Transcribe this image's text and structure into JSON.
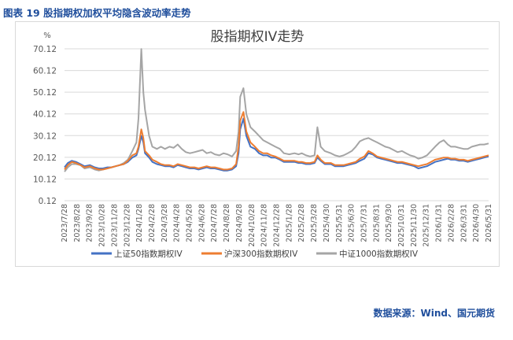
{
  "figure_caption": "图表 19  股指期权加权平均隐含波动率走势",
  "source_note": "数据来源：Wind、国元期货",
  "chart_data": {
    "type": "line",
    "title": "股指期权IV走势",
    "ylabel": "%",
    "ylim": [
      0.12,
      70.12
    ],
    "yticks": [
      "0.12",
      "10.12",
      "20.12",
      "30.12",
      "40.12",
      "50.12",
      "60.12",
      "70.12"
    ],
    "xlim": [
      "2023-07-28",
      "2026-05-31"
    ],
    "x_tick_labels": [
      "2023/7/28",
      "2023/8/28",
      "2023/9/28",
      "2023/10/28",
      "2023/11/28",
      "2023/12/28",
      "2024/1/28",
      "2024/2/28",
      "2024/3/28",
      "2024/4/28",
      "2024/5/28",
      "2024/6/28",
      "2024/7/28",
      "2024/8/28",
      "2024/9/28",
      "2024/10/28",
      "2024/11/28",
      "2024/12/28",
      "2025/1/28",
      "2025/2/28",
      "2025/3/28",
      "2025/4/30",
      "2025/5/31",
      "2025/6/30",
      "2025/7/31",
      "2025/8/31",
      "2025/9/30",
      "2025/10/31",
      "2025/11/30",
      "2025/12/31",
      "2026/1/31",
      "2026/2/28",
      "2026/3/31",
      "2026/4/30",
      "2026/5/31"
    ],
    "grid": "horizontal",
    "legend_position": "bottom",
    "series": [
      {
        "name": "上证50指数期权IV",
        "color": "#4472c4",
        "x": [
          "2023-07-28",
          "2023-08-05",
          "2023-08-15",
          "2023-08-25",
          "2023-09-05",
          "2023-09-15",
          "2023-09-28",
          "2023-10-10",
          "2023-10-20",
          "2023-10-30",
          "2023-11-10",
          "2023-11-20",
          "2023-11-30",
          "2023-12-10",
          "2023-12-20",
          "2023-12-30",
          "2024-01-10",
          "2024-01-20",
          "2024-01-25",
          "2024-02-01",
          "2024-02-06",
          "2024-02-10",
          "2024-02-20",
          "2024-02-28",
          "2024-03-10",
          "2024-03-20",
          "2024-03-30",
          "2024-04-10",
          "2024-04-20",
          "2024-04-30",
          "2024-05-10",
          "2024-05-20",
          "2024-05-30",
          "2024-06-10",
          "2024-06-20",
          "2024-06-30",
          "2024-07-10",
          "2024-07-20",
          "2024-07-30",
          "2024-08-10",
          "2024-08-20",
          "2024-08-30",
          "2024-09-10",
          "2024-09-20",
          "2024-09-26",
          "2024-09-30",
          "2024-10-08",
          "2024-10-15",
          "2024-10-25",
          "2024-11-05",
          "2024-11-15",
          "2024-11-25",
          "2024-12-05",
          "2024-12-15",
          "2024-12-25",
          "2025-01-05",
          "2025-01-15",
          "2025-01-28",
          "2025-02-10",
          "2025-02-20",
          "2025-02-28",
          "2025-03-10",
          "2025-03-20",
          "2025-03-31",
          "2025-04-07",
          "2025-04-15",
          "2025-04-25",
          "2025-05-10",
          "2025-05-20",
          "2025-05-31",
          "2025-06-10",
          "2025-06-20",
          "2025-06-30",
          "2025-07-10",
          "2025-07-20",
          "2025-07-31",
          "2025-08-10",
          "2025-08-20",
          "2025-08-31",
          "2025-09-10",
          "2025-09-20",
          "2025-09-30",
          "2025-10-10",
          "2025-10-20",
          "2025-10-31",
          "2025-11-10",
          "2025-11-20",
          "2025-11-30",
          "2025-12-10",
          "2025-12-20",
          "2025-12-31",
          "2026-01-10",
          "2026-01-20",
          "2026-01-31",
          "2026-02-10",
          "2026-02-20",
          "2026-02-28",
          "2026-03-10",
          "2026-03-20",
          "2026-03-31",
          "2026-04-10",
          "2026-04-20",
          "2026-04-30",
          "2026-05-10",
          "2026-05-20",
          "2026-05-31"
        ],
        "values": [
          15.5,
          17.5,
          18.5,
          18.0,
          17.0,
          16.0,
          16.5,
          15.5,
          15.0,
          15.0,
          15.5,
          15.5,
          16.0,
          16.5,
          17.0,
          18.0,
          20.0,
          21.0,
          24.0,
          30.0,
          27.0,
          22.0,
          20.0,
          18.0,
          17.0,
          16.5,
          16.0,
          16.0,
          15.5,
          16.5,
          16.0,
          15.5,
          15.0,
          15.0,
          14.5,
          15.0,
          15.5,
          15.0,
          15.0,
          14.5,
          14.0,
          14.0,
          14.5,
          16.0,
          22.0,
          33.0,
          38.0,
          30.0,
          25.0,
          24.0,
          22.0,
          21.0,
          21.0,
          20.0,
          20.0,
          19.0,
          18.0,
          18.0,
          18.0,
          17.5,
          17.5,
          17.0,
          17.0,
          17.5,
          20.0,
          18.5,
          17.0,
          17.0,
          16.0,
          16.0,
          16.0,
          16.5,
          17.0,
          17.5,
          18.5,
          19.5,
          22.0,
          21.5,
          20.0,
          19.5,
          19.0,
          18.5,
          18.0,
          17.5,
          17.5,
          17.0,
          16.5,
          16.0,
          15.0,
          15.5,
          16.0,
          17.0,
          18.0,
          18.5,
          19.0,
          19.5,
          19.0,
          19.0,
          18.5,
          18.5,
          18.0,
          18.5,
          19.0,
          19.5,
          20.0,
          20.5
        ]
      },
      {
        "name": "沪深300指数期权IV",
        "color": "#ed7d31",
        "x": [
          "2023-07-28",
          "2023-08-05",
          "2023-08-15",
          "2023-08-25",
          "2023-09-05",
          "2023-09-15",
          "2023-09-28",
          "2023-10-10",
          "2023-10-20",
          "2023-10-30",
          "2023-11-10",
          "2023-11-20",
          "2023-11-30",
          "2023-12-10",
          "2023-12-20",
          "2023-12-30",
          "2024-01-10",
          "2024-01-20",
          "2024-01-25",
          "2024-02-01",
          "2024-02-06",
          "2024-02-10",
          "2024-02-20",
          "2024-02-28",
          "2024-03-10",
          "2024-03-20",
          "2024-03-30",
          "2024-04-10",
          "2024-04-20",
          "2024-04-30",
          "2024-05-10",
          "2024-05-20",
          "2024-05-30",
          "2024-06-10",
          "2024-06-20",
          "2024-06-30",
          "2024-07-10",
          "2024-07-20",
          "2024-07-30",
          "2024-08-10",
          "2024-08-20",
          "2024-08-30",
          "2024-09-10",
          "2024-09-20",
          "2024-09-26",
          "2024-09-30",
          "2024-10-08",
          "2024-10-15",
          "2024-10-25",
          "2024-11-05",
          "2024-11-15",
          "2024-11-25",
          "2024-12-05",
          "2024-12-15",
          "2024-12-25",
          "2025-01-05",
          "2025-01-15",
          "2025-01-28",
          "2025-02-10",
          "2025-02-20",
          "2025-02-28",
          "2025-03-10",
          "2025-03-20",
          "2025-03-31",
          "2025-04-07",
          "2025-04-15",
          "2025-04-25",
          "2025-05-10",
          "2025-05-20",
          "2025-05-31",
          "2025-06-10",
          "2025-06-20",
          "2025-06-30",
          "2025-07-10",
          "2025-07-20",
          "2025-07-31",
          "2025-08-10",
          "2025-08-20",
          "2025-08-31",
          "2025-09-10",
          "2025-09-20",
          "2025-09-30",
          "2025-10-10",
          "2025-10-20",
          "2025-10-31",
          "2025-11-10",
          "2025-11-20",
          "2025-11-30",
          "2025-12-10",
          "2025-12-20",
          "2025-12-31",
          "2026-01-10",
          "2026-01-20",
          "2026-01-31",
          "2026-02-10",
          "2026-02-20",
          "2026-02-28",
          "2026-03-10",
          "2026-03-20",
          "2026-03-31",
          "2026-04-10",
          "2026-04-20",
          "2026-04-30",
          "2026-05-10",
          "2026-05-20",
          "2026-05-31"
        ],
        "values": [
          14.5,
          16.5,
          18.0,
          17.5,
          16.5,
          15.5,
          16.0,
          15.0,
          14.5,
          14.5,
          15.0,
          15.5,
          16.0,
          16.5,
          17.0,
          18.5,
          21.0,
          22.0,
          25.0,
          33.0,
          29.0,
          23.0,
          21.0,
          19.0,
          18.0,
          17.0,
          16.5,
          16.5,
          16.0,
          17.0,
          16.5,
          16.0,
          15.5,
          15.5,
          15.0,
          15.5,
          16.0,
          15.5,
          15.5,
          15.0,
          14.5,
          14.5,
          15.0,
          17.0,
          25.0,
          37.0,
          41.0,
          32.0,
          27.0,
          25.0,
          23.0,
          22.0,
          22.0,
          21.0,
          20.5,
          19.5,
          18.5,
          18.5,
          18.5,
          18.0,
          18.0,
          17.5,
          17.5,
          18.0,
          21.0,
          19.0,
          17.5,
          17.5,
          16.5,
          16.5,
          16.5,
          17.0,
          17.5,
          18.0,
          19.5,
          20.5,
          23.0,
          22.0,
          20.5,
          20.0,
          19.5,
          19.0,
          18.5,
          18.0,
          18.0,
          17.5,
          17.0,
          16.5,
          16.0,
          16.5,
          17.0,
          18.0,
          19.0,
          19.5,
          20.0,
          20.0,
          19.5,
          19.5,
          19.0,
          19.0,
          18.5,
          19.0,
          19.5,
          20.0,
          20.5,
          21.0
        ]
      },
      {
        "name": "中证1000指数期权IV",
        "color": "#a5a5a5",
        "x": [
          "2023-07-28",
          "2023-08-05",
          "2023-08-15",
          "2023-08-25",
          "2023-09-05",
          "2023-09-15",
          "2023-09-28",
          "2023-10-10",
          "2023-10-20",
          "2023-10-30",
          "2023-11-10",
          "2023-11-20",
          "2023-11-30",
          "2023-12-10",
          "2023-12-20",
          "2023-12-30",
          "2024-01-10",
          "2024-01-20",
          "2024-01-25",
          "2024-02-01",
          "2024-02-06",
          "2024-02-10",
          "2024-02-20",
          "2024-02-28",
          "2024-03-10",
          "2024-03-20",
          "2024-03-30",
          "2024-04-10",
          "2024-04-20",
          "2024-04-30",
          "2024-05-10",
          "2024-05-20",
          "2024-05-30",
          "2024-06-10",
          "2024-06-20",
          "2024-06-30",
          "2024-07-10",
          "2024-07-20",
          "2024-07-30",
          "2024-08-10",
          "2024-08-20",
          "2024-08-30",
          "2024-09-10",
          "2024-09-20",
          "2024-09-26",
          "2024-09-30",
          "2024-10-08",
          "2024-10-15",
          "2024-10-25",
          "2024-11-05",
          "2024-11-15",
          "2024-11-25",
          "2024-12-05",
          "2024-12-15",
          "2024-12-25",
          "2025-01-05",
          "2025-01-15",
          "2025-01-28",
          "2025-02-10",
          "2025-02-20",
          "2025-02-28",
          "2025-03-10",
          "2025-03-20",
          "2025-03-31",
          "2025-04-07",
          "2025-04-15",
          "2025-04-25",
          "2025-05-10",
          "2025-05-20",
          "2025-05-31",
          "2025-06-10",
          "2025-06-20",
          "2025-06-30",
          "2025-07-10",
          "2025-07-20",
          "2025-07-31",
          "2025-08-10",
          "2025-08-20",
          "2025-08-31",
          "2025-09-10",
          "2025-09-20",
          "2025-09-30",
          "2025-10-10",
          "2025-10-20",
          "2025-10-31",
          "2025-11-10",
          "2025-11-20",
          "2025-11-30",
          "2025-12-10",
          "2025-12-20",
          "2025-12-31",
          "2026-01-10",
          "2026-01-20",
          "2026-01-31",
          "2026-02-10",
          "2026-02-20",
          "2026-02-28",
          "2026-03-10",
          "2026-03-20",
          "2026-03-31",
          "2026-04-10",
          "2026-04-20",
          "2026-04-30",
          "2026-05-10",
          "2026-05-20",
          "2026-05-31"
        ],
        "values": [
          13.5,
          15.5,
          17.0,
          17.0,
          16.5,
          15.0,
          15.5,
          14.5,
          14.0,
          14.5,
          15.0,
          15.5,
          16.0,
          16.5,
          17.5,
          19.0,
          23.0,
          27.0,
          38.0,
          70.0,
          50.0,
          42.0,
          30.0,
          25.0,
          24.0,
          25.0,
          24.0,
          25.0,
          24.5,
          26.0,
          24.0,
          22.5,
          22.0,
          22.5,
          23.0,
          23.5,
          22.0,
          22.5,
          21.5,
          21.0,
          22.0,
          21.5,
          20.5,
          23.0,
          32.0,
          48.0,
          52.0,
          40.0,
          34.0,
          32.0,
          30.0,
          28.0,
          27.0,
          26.0,
          25.0,
          24.0,
          22.0,
          21.5,
          22.0,
          21.5,
          22.0,
          21.0,
          20.5,
          21.0,
          34.0,
          25.0,
          23.0,
          22.0,
          21.0,
          20.5,
          21.0,
          22.0,
          23.0,
          25.0,
          27.5,
          28.5,
          29.0,
          28.0,
          27.0,
          26.0,
          25.0,
          24.5,
          23.5,
          22.5,
          23.0,
          22.0,
          21.0,
          20.5,
          19.5,
          20.0,
          21.0,
          23.0,
          25.0,
          27.0,
          28.0,
          26.0,
          25.0,
          25.0,
          24.5,
          24.0,
          24.0,
          25.0,
          25.5,
          26.0,
          26.0,
          26.5
        ]
      }
    ]
  }
}
